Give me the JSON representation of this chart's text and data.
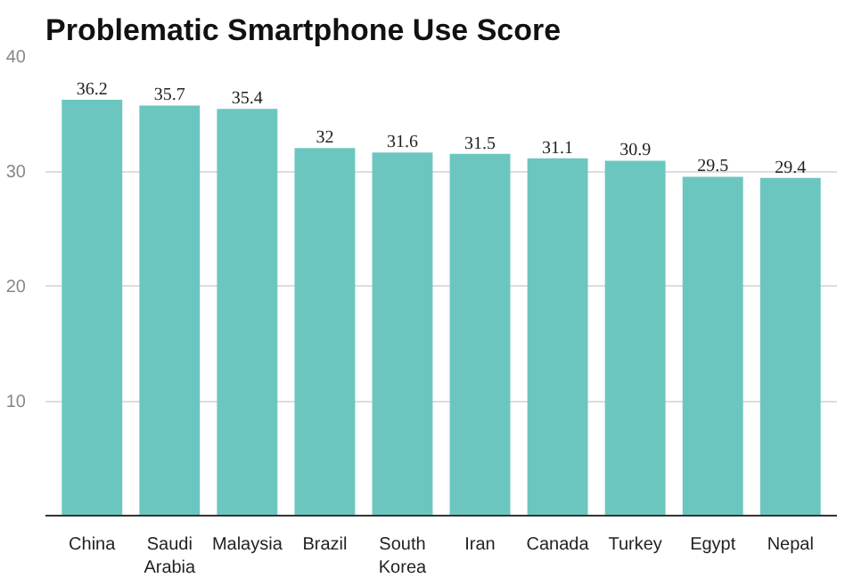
{
  "chart_data": {
    "type": "bar",
    "title": "Problematic Smartphone Use Score",
    "categories": [
      "China",
      "Saudi Arabia",
      "Malaysia",
      "Brazil",
      "South Korea",
      "Iran",
      "Canada",
      "Turkey",
      "Egypt",
      "Nepal"
    ],
    "values": [
      36.2,
      35.7,
      35.4,
      32,
      31.6,
      31.5,
      31.1,
      30.9,
      29.5,
      29.4
    ],
    "color": "#6cc6c0",
    "ylim": [
      0,
      40
    ],
    "yticks": [
      10,
      20,
      30,
      40
    ],
    "grid": "y",
    "data_labels": true
  }
}
